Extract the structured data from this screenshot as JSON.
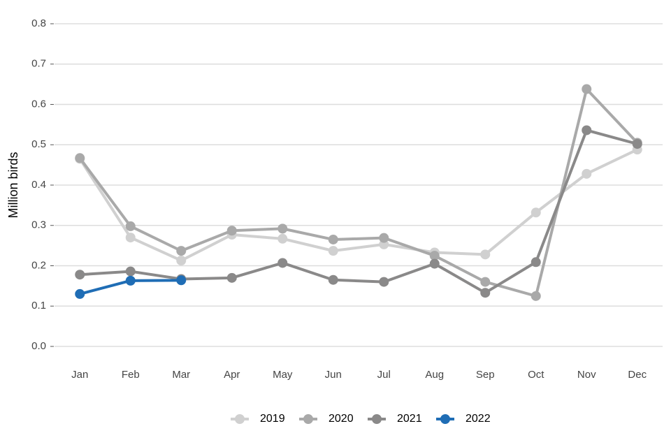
{
  "chart_data": {
    "type": "line",
    "y_label": "Million birds",
    "categories": [
      "Jan",
      "Feb",
      "Mar",
      "Apr",
      "May",
      "Jun",
      "Jul",
      "Aug",
      "Sep",
      "Oct",
      "Nov",
      "Dec"
    ],
    "series": [
      {
        "name": "2019",
        "color": "#d0d0d0",
        "values": [
          0.465,
          0.27,
          0.213,
          0.277,
          0.267,
          0.237,
          0.253,
          0.233,
          0.228,
          0.332,
          0.428,
          0.488
        ]
      },
      {
        "name": "2020",
        "color": "#a9a9a9",
        "values": [
          0.467,
          0.298,
          0.237,
          0.287,
          0.292,
          0.265,
          0.269,
          0.225,
          0.16,
          0.125,
          0.638,
          0.505
        ]
      },
      {
        "name": "2021",
        "color": "#8a8989",
        "values": [
          0.178,
          0.186,
          0.167,
          0.17,
          0.207,
          0.165,
          0.16,
          0.205,
          0.133,
          0.209,
          0.536,
          0.502
        ]
      },
      {
        "name": "2022",
        "color": "#1f6db5",
        "values": [
          0.13,
          0.163,
          0.164,
          null,
          null,
          null,
          null,
          null,
          null,
          null,
          null,
          null
        ]
      }
    ],
    "ylim": [
      0,
      0.8
    ],
    "yticks": [
      {
        "value": 0,
        "label": "0.0"
      },
      0.1,
      0.2,
      0.3,
      0.4,
      0.5,
      0.6,
      0.7,
      0.8
    ],
    "grid": true,
    "legend": "bottom"
  }
}
